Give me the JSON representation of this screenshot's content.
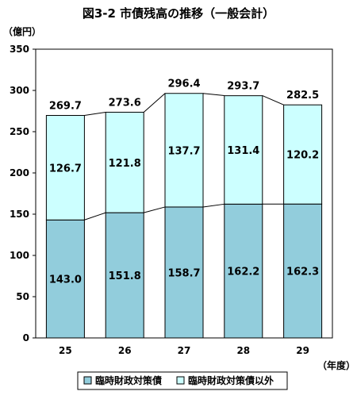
{
  "chart_data": {
    "type": "bar",
    "stacked": true,
    "title": "図3-2 市債残高の推移（一般会計）",
    "ylabel": "（億円）",
    "xlabel": "（年度）",
    "categories": [
      "25",
      "26",
      "27",
      "28",
      "29"
    ],
    "ylim": [
      0,
      350
    ],
    "yticks": [
      0,
      50,
      100,
      150,
      200,
      250,
      300,
      350
    ],
    "grid": false,
    "legend_position": "bottom",
    "series": [
      {
        "name": "臨時財政対策債",
        "values": [
          143.0,
          151.8,
          158.7,
          162.2,
          162.3
        ],
        "labels": [
          "143.0",
          "151.8",
          "158.7",
          "162.2",
          "162.3"
        ],
        "color": "#92cddc"
      },
      {
        "name": "臨時財政対策債以外",
        "values": [
          126.7,
          121.8,
          137.7,
          131.4,
          120.2
        ],
        "labels": [
          "126.7",
          "121.8",
          "137.7",
          "131.4",
          "120.2"
        ],
        "color": "#ccffff"
      }
    ],
    "totals": [
      269.7,
      273.6,
      296.4,
      293.7,
      282.5
    ],
    "total_labels": [
      "269.7",
      "273.6",
      "296.4",
      "293.7",
      "282.5"
    ]
  }
}
